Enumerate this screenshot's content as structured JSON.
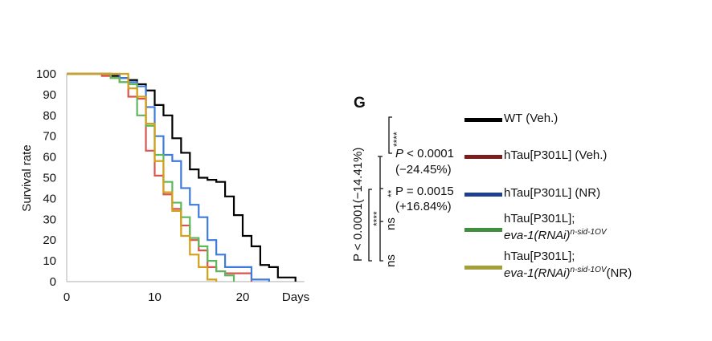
{
  "panel_label": "G",
  "chart_data": {
    "type": "line",
    "subtype": "step (Kaplan-Meier survival)",
    "title": "",
    "xlabel": "Days",
    "ylabel": "Survival rate",
    "xlim": [
      0,
      27
    ],
    "ylim": [
      0,
      100
    ],
    "x_ticks": [
      0,
      10,
      20
    ],
    "y_ticks": [
      0,
      10,
      20,
      30,
      40,
      50,
      60,
      70,
      80,
      90,
      100
    ],
    "grid": false,
    "legend_position": "right",
    "series": [
      {
        "name": "WT (Veh.)",
        "color": "#000000",
        "legend_color": "#000000",
        "days": [
          0,
          5,
          6,
          7,
          8,
          9,
          10,
          11,
          12,
          13,
          14,
          15,
          16,
          17,
          18,
          19,
          20,
          21,
          22,
          23,
          24,
          26
        ],
        "values": [
          100,
          99,
          98,
          97,
          95,
          92,
          85,
          80,
          69,
          62,
          54,
          50,
          49,
          48,
          41,
          32,
          22,
          17,
          8,
          7,
          2,
          1
        ]
      },
      {
        "name": "hTau[P301L] (Veh.)",
        "color": "#d9534f",
        "legend_color": "#7a1e1e",
        "days": [
          0,
          4,
          5,
          6,
          7,
          8,
          9,
          10,
          11,
          12,
          13,
          14,
          15,
          16,
          17,
          18,
          21
        ],
        "values": [
          100,
          99,
          98,
          96,
          89,
          88,
          63,
          51,
          42,
          35,
          27,
          20,
          15,
          7,
          5,
          4,
          0
        ]
      },
      {
        "name": "hTau[P301L] (NR)",
        "color": "#3f7bd9",
        "legend_color": "#1f3f8f",
        "days": [
          0,
          6,
          7,
          8,
          9,
          10,
          11,
          12,
          13,
          14,
          15,
          16,
          17,
          18,
          21,
          23
        ],
        "values": [
          100,
          98,
          96,
          94,
          84,
          70,
          61,
          58,
          45,
          37,
          31,
          20,
          13,
          7,
          1,
          0
        ]
      },
      {
        "name": "hTau[P301L]; eva-1(RNAi)n-sid-1OV",
        "color": "#5cb85c",
        "legend_color": "#3f8f3f",
        "days": [
          0,
          5,
          6,
          7,
          8,
          9,
          10,
          11,
          12,
          13,
          14,
          15,
          16,
          17,
          18,
          19
        ],
        "values": [
          100,
          98,
          96,
          95,
          80,
          75,
          61,
          48,
          38,
          31,
          21,
          17,
          10,
          5,
          3,
          0
        ]
      },
      {
        "name": "hTau[P301L]; eva-1(RNAi)n-sid-1OV(NR)",
        "color": "#d4a017",
        "legend_color": "#a3a03a",
        "days": [
          0,
          7,
          8,
          9,
          10,
          11,
          12,
          13,
          14,
          15,
          16,
          17
        ],
        "values": [
          100,
          93,
          89,
          76,
          58,
          43,
          34,
          22,
          13,
          7,
          1,
          0
        ]
      }
    ],
    "annotations": [
      {
        "text": "****",
        "compares": [
          "WT (Veh.)",
          "hTau[P301L] (Veh.)"
        ]
      },
      {
        "text": "P < 0.0001",
        "detail": "(−24.45%)"
      },
      {
        "text": "**",
        "compares": [
          "hTau[P301L] (Veh.)",
          "hTau[P301L] (NR)"
        ]
      },
      {
        "text": "P = 0.0015",
        "detail": "(+16.84%)"
      },
      {
        "text": "ns",
        "compares": [
          "hTau[P301L] (Veh.)",
          "hTau[P301L]; eva-1(RNAi)n-sid-1OV"
        ]
      },
      {
        "text": "ns",
        "compares": [
          "hTau[P301L] (Veh.)",
          "hTau[P301L]; eva-1(RNAi)n-sid-1OV(NR)"
        ]
      },
      {
        "text": "****",
        "compares": [
          "hTau[P301L] (NR)",
          "hTau[P301L]; eva-1(RNAi)n-sid-1OV(NR)"
        ]
      },
      {
        "text": "P < 0.0001(−14.41%)"
      }
    ]
  },
  "legend": [
    {
      "label": "WT (Veh.)",
      "color": "#000000"
    },
    {
      "label": "hTau[P301L] (Veh.)",
      "color": "#7a1e1e"
    },
    {
      "label": "hTau[P301L] (NR)",
      "color": "#1f3f8f"
    },
    {
      "line1": "hTau[P301L];",
      "italic": "eva-1(RNAi)",
      "sup": "n-sid-1OV",
      "suffix": "",
      "color": "#3f8f3f"
    },
    {
      "line1": "hTau[P301L];",
      "italic": "eva-1(RNAi)",
      "sup": "n-sid-1OV",
      "suffix": "(NR)",
      "color": "#a3a03a"
    }
  ],
  "stats": {
    "p1": "P < 0.0001",
    "p1_pct": "(−24.45%)",
    "p2": "P = 0.0015",
    "p2_pct": "(+16.84%)",
    "stars4": "****",
    "stars2": "**",
    "ns": "ns",
    "outer": "P < 0.0001(−14.41%)"
  }
}
